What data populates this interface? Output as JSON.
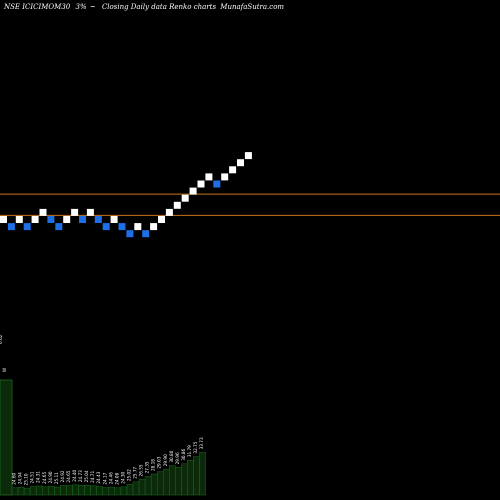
{
  "header": {
    "symbol": "NSE ICICIMOM30",
    "box_size": "3%",
    "symbol_suffix": "~",
    "description": "Closing Daily data Renko charts",
    "site": "MunafaSutra.com"
  },
  "chart_data": {
    "type": "renko",
    "title": "NSE ICICIMOM30  3% ~  Closing Daily data  Renko  charts",
    "box_size_percent": 3,
    "bricks": [
      {
        "level": 0,
        "direction": "up"
      },
      {
        "level": -1,
        "direction": "down"
      },
      {
        "level": 0,
        "direction": "up"
      },
      {
        "level": -1,
        "direction": "down"
      },
      {
        "level": 0,
        "direction": "up"
      },
      {
        "level": 1,
        "direction": "up"
      },
      {
        "level": 0,
        "direction": "down"
      },
      {
        "level": -1,
        "direction": "down"
      },
      {
        "level": 0,
        "direction": "up"
      },
      {
        "level": 1,
        "direction": "up"
      },
      {
        "level": 0,
        "direction": "down"
      },
      {
        "level": 1,
        "direction": "up"
      },
      {
        "level": 0,
        "direction": "down"
      },
      {
        "level": -1,
        "direction": "down"
      },
      {
        "level": 0,
        "direction": "up"
      },
      {
        "level": -1,
        "direction": "down"
      },
      {
        "level": -2,
        "direction": "down"
      },
      {
        "level": -1,
        "direction": "up"
      },
      {
        "level": -2,
        "direction": "down"
      },
      {
        "level": -1,
        "direction": "up"
      },
      {
        "level": 0,
        "direction": "up"
      },
      {
        "level": 1,
        "direction": "up"
      },
      {
        "level": 2,
        "direction": "up"
      },
      {
        "level": 3,
        "direction": "up"
      },
      {
        "level": 4,
        "direction": "up"
      },
      {
        "level": 5,
        "direction": "up"
      },
      {
        "level": 6,
        "direction": "up"
      },
      {
        "level": 5,
        "direction": "down"
      },
      {
        "level": 6,
        "direction": "up"
      },
      {
        "level": 7,
        "direction": "up"
      },
      {
        "level": 8,
        "direction": "up"
      },
      {
        "level": 9,
        "direction": "up"
      }
    ],
    "reference_lines": [
      3,
      0
    ],
    "volume": {
      "first_bar_labels": [
        "6.62",
        "W"
      ],
      "bars": [
        {
          "v": 0.6,
          "label": "24.60"
        },
        {
          "v": 0.65,
          "label": "24.94"
        },
        {
          "v": 0.55,
          "label": "25.10"
        },
        {
          "v": 0.7,
          "label": "24.51"
        },
        {
          "v": 0.75,
          "label": "24.31"
        },
        {
          "v": 0.68,
          "label": "24.65"
        },
        {
          "v": 0.72,
          "label": "24.90"
        },
        {
          "v": 0.66,
          "label": "25.11"
        },
        {
          "v": 0.8,
          "label": "24.92"
        },
        {
          "v": 0.78,
          "label": "24.65"
        },
        {
          "v": 0.85,
          "label": "24.40"
        },
        {
          "v": 0.82,
          "label": "24.73"
        },
        {
          "v": 0.8,
          "label": "25.04"
        },
        {
          "v": 0.76,
          "label": "24.71"
        },
        {
          "v": 0.7,
          "label": "24.43"
        },
        {
          "v": 0.62,
          "label": "24.17"
        },
        {
          "v": 0.66,
          "label": "24.46"
        },
        {
          "v": 0.6,
          "label": "24.08"
        },
        {
          "v": 0.68,
          "label": "24.30"
        },
        {
          "v": 0.9,
          "label": "25.02"
        },
        {
          "v": 1.1,
          "label": "25.77"
        },
        {
          "v": 1.3,
          "label": "26.55"
        },
        {
          "v": 1.55,
          "label": "27.35"
        },
        {
          "v": 1.75,
          "label": "28.18"
        },
        {
          "v": 1.95,
          "label": "29.03"
        },
        {
          "v": 2.15,
          "label": "29.90"
        },
        {
          "v": 2.45,
          "label": "30.80"
        },
        {
          "v": 2.3,
          "label": "29.96"
        },
        {
          "v": 2.6,
          "label": "30.86"
        },
        {
          "v": 2.9,
          "label": "31.79"
        },
        {
          "v": 3.2,
          "label": "32.75"
        },
        {
          "v": 3.55,
          "label": "33.73"
        }
      ]
    },
    "colors": {
      "up": "#ffffff",
      "down": "#1e6fe6",
      "reference_line": "#c8741e",
      "volume_fill": "#0a2a0a",
      "volume_edge": "#1f6b1f",
      "background": "#000000"
    }
  }
}
